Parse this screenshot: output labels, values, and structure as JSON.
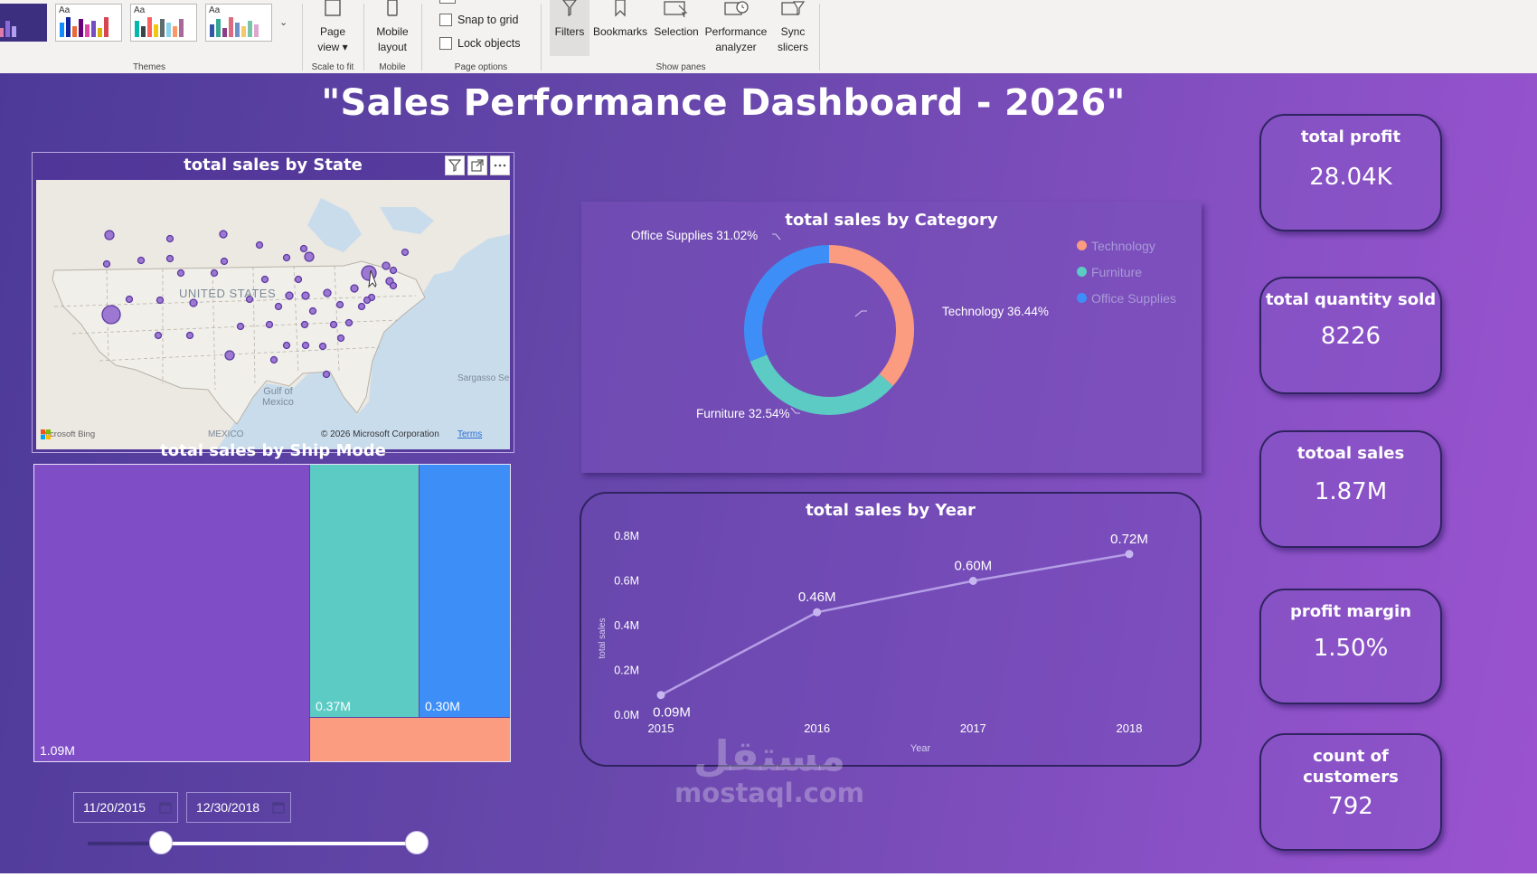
{
  "ribbon": {
    "groups": {
      "themes": "Themes",
      "scale": "Scale to fit",
      "mobile": "Mobile",
      "page_options": "Page options",
      "show_panes": "Show panes"
    },
    "theme_thumb_label": "Aa",
    "page_view": [
      "Page",
      "view ▾"
    ],
    "mobile_layout": [
      "Mobile",
      "layout"
    ],
    "snap_to_grid": "Snap to grid",
    "lock_objects": "Lock objects",
    "filters": "Filters",
    "bookmarks": "Bookmarks",
    "selection": "Selection",
    "performance": [
      "Performance",
      "analyzer"
    ],
    "sync": [
      "Sync",
      "slicers"
    ]
  },
  "dashboard": {
    "title": "\"Sales Performance Dashboard - 2026\""
  },
  "map": {
    "title": "total sales by State",
    "country_label": "UNITED STATES",
    "gulf_label": [
      "Gulf of",
      "Mexico"
    ],
    "mexico_label": "MEXICO",
    "sargasso_label": "Sargasso Se",
    "bing_label": "Microsoft Bing",
    "copyright": "© 2026 Microsoft Corporation",
    "terms": "Terms"
  },
  "treemap": {
    "title": "total sales by Ship Mode",
    "cells": [
      {
        "label": "1.09M",
        "value": 1.09,
        "color": "#7f4ec6"
      },
      {
        "label": "0.37M",
        "value": 0.37,
        "color": "#5ccbc4"
      },
      {
        "label": "0.30M",
        "value": 0.3,
        "color": "#3d8ff7"
      },
      {
        "label": "",
        "value": 0.11,
        "color": "#fb9b80"
      }
    ]
  },
  "date_slicer": {
    "start": "11/20/2015",
    "end": "12/30/2018",
    "range_min": "2015-01-01",
    "range_max": "2018-12-30",
    "start_value": "2015-11-20",
    "end_value": "2018-12-30"
  },
  "donut": {
    "title": "total sales by Category",
    "legend": [
      {
        "name": "Technology",
        "color": "#fb9b80"
      },
      {
        "name": "Furniture",
        "color": "#5ccbc4"
      },
      {
        "name": "Office Supplies",
        "color": "#3d8ff7"
      }
    ],
    "slice_labels": {
      "office": "Office Supplies 31.02%",
      "technology": "Technology 36.44%",
      "furniture": "Furniture 32.54%"
    }
  },
  "line_chart": {
    "title": "total sales by Year",
    "ylabel": "total sales",
    "xlabel": "Year",
    "yticks": [
      "0.8M",
      "0.6M",
      "0.4M",
      "0.2M",
      "0.0M"
    ],
    "xticks": [
      "2015",
      "2016",
      "2017",
      "2018"
    ],
    "point_labels": [
      "0.09M",
      "0.46M",
      "0.60M",
      "0.72M"
    ]
  },
  "chart_data": [
    {
      "type": "pie",
      "title": "total sales by Category",
      "categories": [
        "Technology",
        "Furniture",
        "Office Supplies"
      ],
      "values": [
        36.44,
        32.54,
        31.02
      ],
      "legend": "top-right"
    },
    {
      "type": "line",
      "title": "total sales by Year",
      "x": [
        2015,
        2016,
        2017,
        2018
      ],
      "values": [
        0.09,
        0.46,
        0.6,
        0.72
      ],
      "xlabel": "Year",
      "ylabel": "total sales",
      "ylim": [
        0,
        0.8
      ]
    }
  ],
  "kpis": [
    {
      "title": "total profit",
      "value": "28.04K"
    },
    {
      "title": "total quantity sold",
      "value": "8226"
    },
    {
      "title": "totoal sales",
      "value": "1.87M"
    },
    {
      "title": "profit margin",
      "value": "1.50%"
    },
    {
      "title": "count of customers",
      "value": "792"
    }
  ],
  "watermark": {
    "arabic": "مستقل",
    "latin": "mostaql.com"
  },
  "colors": {
    "accent_dark": "#2f2360",
    "purple": "#7f4ec6",
    "teal": "#5ccbc4",
    "blue": "#3d8ff7",
    "salmon": "#fb9b80"
  }
}
